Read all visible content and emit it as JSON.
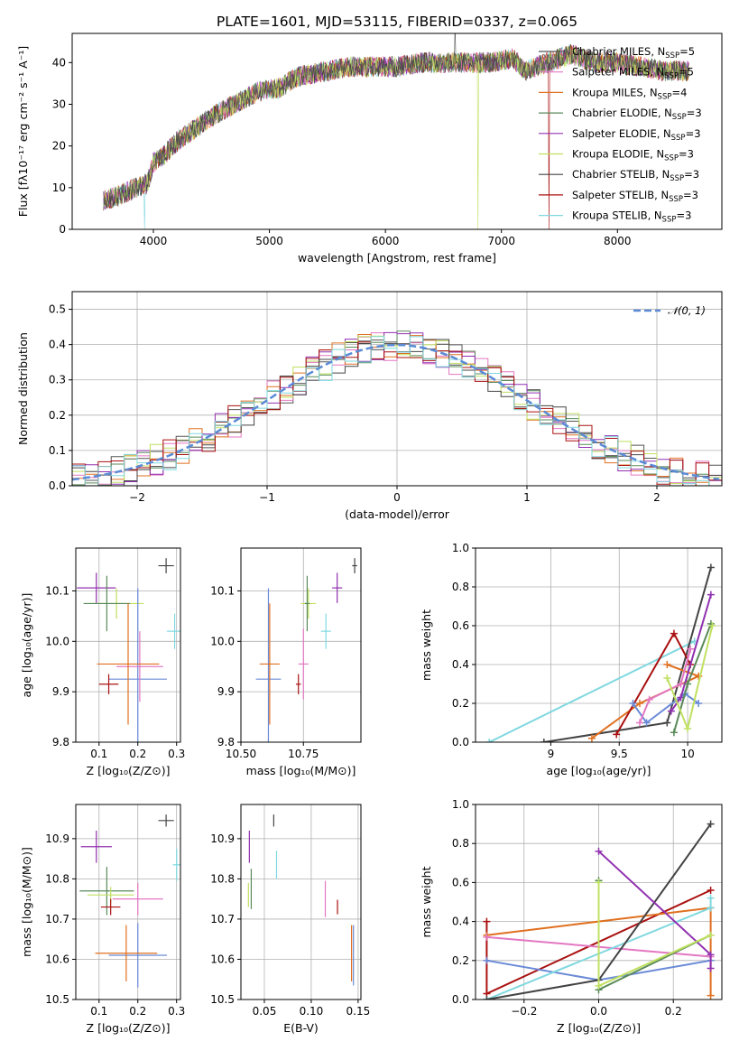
{
  "title": "PLATE=1601, MJD=53115, FIBERID=0337, z=0.065",
  "colors": [
    "#555555",
    "#e377c2",
    "#e07020",
    "#5a8a5a",
    "#9030b0",
    "#c0e060",
    "#444444",
    "#aa1111",
    "#80d8e0",
    "#6a8ad8"
  ],
  "models": [
    {
      "label": "Chabrier MILES, N",
      "sub": "SSP",
      "tail": "=5",
      "color": "#555555"
    },
    {
      "label": "Salpeter MILES, N",
      "sub": "SSP",
      "tail": "=5",
      "color": "#e377c2"
    },
    {
      "label": "Kroupa MILES, N",
      "sub": "SSP",
      "tail": "=4",
      "color": "#e07020"
    },
    {
      "label": "Chabrier ELODIE, N",
      "sub": "SSP",
      "tail": "=3",
      "color": "#5a8a5a"
    },
    {
      "label": "Salpeter ELODIE, N",
      "sub": "SSP",
      "tail": "=3",
      "color": "#9030b0"
    },
    {
      "label": "Kroupa ELODIE, N",
      "sub": "SSP",
      "tail": "=3",
      "color": "#c0e060"
    },
    {
      "label": "Chabrier STELIB, N",
      "sub": "SSP",
      "tail": "=3",
      "color": "#444444"
    },
    {
      "label": "Salpeter STELIB, N",
      "sub": "SSP",
      "tail": "=3",
      "color": "#aa1111"
    },
    {
      "label": "Kroupa STELIB, N",
      "sub": "SSP",
      "tail": "=3",
      "color": "#80d8e0"
    }
  ],
  "chart_data": [
    {
      "type": "line",
      "name": "spectrum",
      "xlabel": "wavelength [Angstrom, rest frame]",
      "ylabel": "Flux [fλ10⁻¹⁷ erg cm⁻² s⁻¹ A⁻¹]",
      "xlim": [
        3300,
        8900
      ],
      "ylim": [
        0,
        47
      ],
      "xticks": [
        4000,
        5000,
        6000,
        7000,
        8000
      ],
      "yticks": [
        0,
        10,
        20,
        30,
        40
      ],
      "continuum_x": [
        3570,
        3700,
        3850,
        3950,
        4000,
        4100,
        4200,
        4300,
        4500,
        4700,
        4900,
        5100,
        5200,
        5300,
        5500,
        5700,
        5900,
        6100,
        6300,
        6500,
        6700,
        6900,
        7100,
        7200,
        7400,
        7600,
        7800,
        8000,
        8200,
        8400,
        8600
      ],
      "continuum_y": [
        7,
        8,
        10,
        11,
        16,
        18,
        21,
        23,
        27,
        30,
        33,
        34,
        36,
        37,
        38,
        39,
        39,
        39,
        40,
        40,
        40,
        40,
        41,
        38,
        40,
        42,
        40,
        40,
        39,
        38,
        38
      ],
      "grid": false
    },
    {
      "type": "line",
      "name": "residual-histogram",
      "xlabel": "(data-model)/error",
      "ylabel": "Normed distribution",
      "xlim": [
        -2.5,
        2.5
      ],
      "ylim": [
        0,
        0.55
      ],
      "xticks": [
        -2,
        -1,
        0,
        1,
        2
      ],
      "xtick_labels": [
        "−2",
        "−1",
        "0",
        "1",
        "2"
      ],
      "yticks": [
        0,
        0.1,
        0.2,
        0.3,
        0.4,
        0.5
      ],
      "gaussian_label": "𝒩(0, 1)",
      "gaussian_color": "#5b8ad6",
      "grid": true
    },
    {
      "type": "scatter",
      "name": "age-vs-Z",
      "xlabel": "Z [log₁₀(Z/Z⊙)]",
      "ylabel": "age  [log₁₀(age/yr)]",
      "xlim": [
        0.04,
        0.31
      ],
      "ylim": [
        9.8,
        10.185
      ],
      "xticks": [
        0.1,
        0.2,
        0.3
      ],
      "yticks": [
        9.8,
        9.9,
        10.0,
        10.1
      ],
      "points": [
        {
          "x": 0.273,
          "y": 10.15,
          "xe": 0.02,
          "ye": 0.015,
          "c": "#444444"
        },
        {
          "x": 0.093,
          "y": 10.106,
          "xe": 0.05,
          "ye": 0.03,
          "c": "#9030b0"
        },
        {
          "x": 0.145,
          "y": 10.075,
          "xe": 0.07,
          "ye": 0.03,
          "c": "#c0e060"
        },
        {
          "x": 0.12,
          "y": 10.075,
          "xe": 0.06,
          "ye": 0.055,
          "c": "#5a8a5a"
        },
        {
          "x": 0.2,
          "y": 9.925,
          "xe": 0.075,
          "ye": 0.18,
          "c": "#6a8ad8"
        },
        {
          "x": 0.205,
          "y": 9.95,
          "xe": 0.06,
          "ye": 0.07,
          "c": "#e377c2"
        },
        {
          "x": 0.175,
          "y": 9.955,
          "xe": 0.08,
          "ye": 0.12,
          "c": "#e07020"
        },
        {
          "x": 0.125,
          "y": 9.915,
          "xe": 0.025,
          "ye": 0.02,
          "c": "#aa1111"
        },
        {
          "x": 0.295,
          "y": 10.02,
          "xe": 0.02,
          "ye": 0.035,
          "c": "#80d8e0"
        }
      ]
    },
    {
      "type": "scatter",
      "name": "age-vs-mass",
      "xlabel": "mass [log₁₀(M/M⊙)]",
      "ylabel": "",
      "xlim": [
        10.5,
        10.98
      ],
      "ylim": [
        9.8,
        10.185
      ],
      "xticks": [
        10.5,
        10.75
      ],
      "xtick_labels": [
        "10.50",
        "10.75"
      ],
      "yticks": [
        9.8,
        9.9,
        10.0,
        10.1
      ],
      "points": [
        {
          "x": 10.955,
          "y": 10.15,
          "xe": 0.01,
          "ye": 0.015,
          "c": "#444444"
        },
        {
          "x": 10.885,
          "y": 10.106,
          "xe": 0.02,
          "ye": 0.03,
          "c": "#9030b0"
        },
        {
          "x": 10.77,
          "y": 10.075,
          "xe": 0.03,
          "ye": 0.03,
          "c": "#c0e060"
        },
        {
          "x": 10.765,
          "y": 10.075,
          "xe": 0.01,
          "ye": 0.055,
          "c": "#5a8a5a"
        },
        {
          "x": 10.61,
          "y": 9.925,
          "xe": 0.05,
          "ye": 0.18,
          "c": "#6a8ad8"
        },
        {
          "x": 10.75,
          "y": 9.955,
          "xe": 0.02,
          "ye": 0.07,
          "c": "#e377c2"
        },
        {
          "x": 10.615,
          "y": 9.955,
          "xe": 0.04,
          "ye": 0.12,
          "c": "#e07020"
        },
        {
          "x": 10.73,
          "y": 9.915,
          "xe": 0.01,
          "ye": 0.02,
          "c": "#aa1111"
        },
        {
          "x": 10.84,
          "y": 10.02,
          "xe": 0.02,
          "ye": 0.035,
          "c": "#80d8e0"
        }
      ]
    },
    {
      "type": "line",
      "name": "mass-weight-vs-age",
      "xlabel": "age  [log₁₀(age/yr)]",
      "ylabel": "mass weight",
      "xlim": [
        8.45,
        10.25
      ],
      "ylim": [
        0,
        1.0
      ],
      "xticks": [
        9.0,
        9.5,
        10.0
      ],
      "yticks": [
        0,
        0.2,
        0.4,
        0.6,
        0.8,
        1.0
      ],
      "series": [
        {
          "c": "#80d8e0",
          "x": [
            8.55,
            10.05
          ],
          "y": [
            0.0,
            0.52
          ]
        },
        {
          "c": "#444444",
          "x": [
            8.95,
            9.85,
            10.17
          ],
          "y": [
            0.0,
            0.1,
            0.9
          ]
        },
        {
          "c": "#e07020",
          "x": [
            9.3,
            9.65,
            10.08,
            9.85
          ],
          "y": [
            0.02,
            0.2,
            0.34,
            0.4
          ]
        },
        {
          "c": "#aa1111",
          "x": [
            9.48,
            9.9,
            10.02
          ],
          "y": [
            0.04,
            0.56,
            0.4
          ]
        },
        {
          "c": "#6a8ad8",
          "x": [
            9.6,
            9.7,
            9.98,
            10.08
          ],
          "y": [
            0.2,
            0.1,
            0.25,
            0.2
          ]
        },
        {
          "c": "#e377c2",
          "x": [
            9.65,
            9.72,
            9.95,
            10.02
          ],
          "y": [
            0.1,
            0.22,
            0.3,
            0.48
          ]
        },
        {
          "c": "#9030b0",
          "x": [
            9.88,
            9.95,
            10.17
          ],
          "y": [
            0.16,
            0.23,
            0.76
          ]
        },
        {
          "c": "#5a8a5a",
          "x": [
            9.9,
            10.0,
            10.17
          ],
          "y": [
            0.05,
            0.3,
            0.61
          ]
        },
        {
          "c": "#c0e060",
          "x": [
            9.85,
            10.0,
            10.18
          ],
          "y": [
            0.33,
            0.07,
            0.6
          ]
        }
      ]
    },
    {
      "type": "scatter",
      "name": "mass-vs-Z",
      "xlabel": "Z [log₁₀(Z/Z⊙)]",
      "ylabel": "mass [log₁₀(M/M⊙)]",
      "xlim": [
        0.04,
        0.31
      ],
      "ylim": [
        10.5,
        10.985
      ],
      "xticks": [
        0.1,
        0.2,
        0.3
      ],
      "yticks": [
        10.5,
        10.6,
        10.7,
        10.8,
        10.9
      ],
      "points": [
        {
          "x": 0.273,
          "y": 10.945,
          "xe": 0.02,
          "ye": 0.015,
          "c": "#444444"
        },
        {
          "x": 0.093,
          "y": 10.88,
          "xe": 0.04,
          "ye": 0.04,
          "c": "#9030b0"
        },
        {
          "x": 0.12,
          "y": 10.77,
          "xe": 0.07,
          "ye": 0.06,
          "c": "#5a8a5a"
        },
        {
          "x": 0.13,
          "y": 10.76,
          "xe": 0.06,
          "ye": 0.02,
          "c": "#c0e060"
        },
        {
          "x": 0.2,
          "y": 10.75,
          "xe": 0.065,
          "ye": 0.04,
          "c": "#e377c2"
        },
        {
          "x": 0.2,
          "y": 10.61,
          "xe": 0.075,
          "ye": 0.08,
          "c": "#6a8ad8"
        },
        {
          "x": 0.17,
          "y": 10.615,
          "xe": 0.08,
          "ye": 0.07,
          "c": "#e07020"
        },
        {
          "x": 0.13,
          "y": 10.73,
          "xe": 0.025,
          "ye": 0.02,
          "c": "#aa1111"
        },
        {
          "x": 0.3,
          "y": 10.835,
          "xe": 0.01,
          "ye": 0.04,
          "c": "#80d8e0"
        }
      ]
    },
    {
      "type": "scatter",
      "name": "mass-vs-ebv",
      "xlabel": "E(B-V)",
      "ylabel": "",
      "xlim": [
        0.025,
        0.153
      ],
      "ylim": [
        10.5,
        10.985
      ],
      "xticks": [
        0.05,
        0.1,
        0.15
      ],
      "xtick_labels": [
        "0.05",
        "0.10",
        "0.15"
      ],
      "yticks": [
        10.5,
        10.6,
        10.7,
        10.8,
        10.9
      ],
      "points": [
        {
          "x": 0.06,
          "y": 10.945,
          "xe": 0,
          "ye": 0.015,
          "c": "#444444"
        },
        {
          "x": 0.034,
          "y": 10.88,
          "xe": 0,
          "ye": 0.04,
          "c": "#9030b0"
        },
        {
          "x": 0.036,
          "y": 10.775,
          "xe": 0,
          "ye": 0.05,
          "c": "#5a8a5a"
        },
        {
          "x": 0.033,
          "y": 10.76,
          "xe": 0,
          "ye": 0.03,
          "c": "#c0e060"
        },
        {
          "x": 0.063,
          "y": 10.835,
          "xe": 0,
          "ye": 0.035,
          "c": "#80d8e0"
        },
        {
          "x": 0.115,
          "y": 10.75,
          "xe": 0,
          "ye": 0.045,
          "c": "#e377c2"
        },
        {
          "x": 0.128,
          "y": 10.73,
          "xe": 0,
          "ye": 0.018,
          "c": "#aa1111"
        },
        {
          "x": 0.143,
          "y": 10.615,
          "xe": 0,
          "ye": 0.07,
          "c": "#e07020"
        },
        {
          "x": 0.145,
          "y": 10.61,
          "xe": 0,
          "ye": 0.075,
          "c": "#6a8ad8"
        }
      ]
    },
    {
      "type": "line",
      "name": "mass-weight-vs-Z",
      "xlabel": "Z [log₁₀(Z/Z⊙)]",
      "ylabel": "mass weight",
      "xlim": [
        -0.33,
        0.33
      ],
      "ylim": [
        0,
        1.0
      ],
      "xticks": [
        -0.2,
        0.0,
        0.2
      ],
      "xtick_labels": [
        "−0.2",
        "0.0",
        "0.2"
      ],
      "yticks": [
        0,
        0.2,
        0.4,
        0.6,
        0.8,
        1.0
      ],
      "series": [
        {
          "c": "#aa1111",
          "x": [
            -0.3,
            -0.3,
            0.3
          ],
          "y": [
            0.4,
            0.03,
            0.56
          ]
        },
        {
          "c": "#e07020",
          "x": [
            -0.3,
            0.3,
            0.3
          ],
          "y": [
            0.33,
            0.47,
            0.02
          ]
        },
        {
          "c": "#e377c2",
          "x": [
            -0.3,
            0.3
          ],
          "y": [
            0.32,
            0.22
          ]
        },
        {
          "c": "#6a8ad8",
          "x": [
            -0.3,
            0.0,
            0.3
          ],
          "y": [
            0.2,
            0.1,
            0.2
          ]
        },
        {
          "c": "#80d8e0",
          "x": [
            -0.3,
            0.3,
            0.3
          ],
          "y": [
            0.0,
            0.47,
            0.52
          ]
        },
        {
          "c": "#444444",
          "x": [
            -0.3,
            0.0,
            0.3
          ],
          "y": [
            0.0,
            0.1,
            0.9
          ]
        },
        {
          "c": "#9030b0",
          "x": [
            0.0,
            0.3,
            0.3
          ],
          "y": [
            0.76,
            0.23,
            0.16
          ]
        },
        {
          "c": "#5a8a5a",
          "x": [
            0.0,
            0.0,
            0.3
          ],
          "y": [
            0.61,
            0.05,
            0.33
          ]
        },
        {
          "c": "#c0e060",
          "x": [
            0.0,
            0.0,
            0.3
          ],
          "y": [
            0.6,
            0.07,
            0.33
          ]
        }
      ]
    }
  ]
}
